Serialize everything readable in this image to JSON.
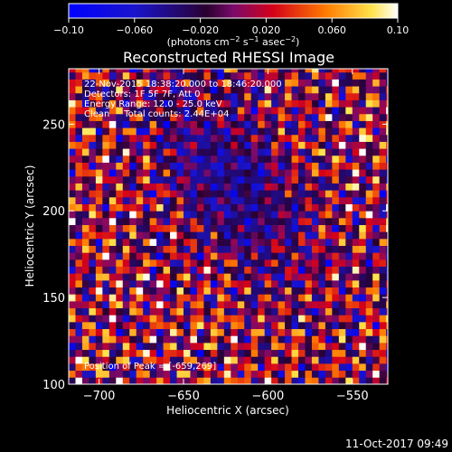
{
  "chart_data": {
    "type": "heatmap",
    "title": "Reconstructed RHESSI Image",
    "colorbar": {
      "ticks": [
        "−0.10",
        "−0.060",
        "−0.020",
        "0.020",
        "0.060",
        "0.10"
      ],
      "unit_prefix": "(photons cm",
      "unit_exp1": "−2",
      "unit_mid": " s",
      "unit_exp2": "−1",
      "unit_mid2": " asec",
      "unit_exp3": "−2",
      "unit_suffix": ")",
      "range": [
        -0.1,
        0.1
      ],
      "colormap": "blue-black-purple-red-orange-yellow-white"
    },
    "annotations": {
      "time": "22-Nov-2015 18:38:20.000 to 18:46:20.000",
      "detectors": "Detectors: 1F 5F 7F, Att 0",
      "energy": "Energy Range: 12.0 - 25.0 keV",
      "algorithm": "Clean     Total counts: 2.44E+04",
      "peak": "Position of Peak = [-659,269]"
    },
    "xlabel": "Heliocentric X (arcsec)",
    "ylabel": "Heliocentric Y (arcsec)",
    "xlim": [
      -718,
      -529
    ],
    "ylim": [
      100,
      282
    ],
    "xticks": [
      {
        "v": -700,
        "label": "−700"
      },
      {
        "v": -650,
        "label": "−650"
      },
      {
        "v": -600,
        "label": "−600"
      },
      {
        "v": -550,
        "label": "−550"
      }
    ],
    "yticks": [
      {
        "v": 100,
        "label": "100"
      },
      {
        "v": 150,
        "label": "150"
      },
      {
        "v": 200,
        "label": "200"
      },
      {
        "v": 250,
        "label": "250"
      }
    ],
    "pixel_arcsec": 4
  },
  "footer": {
    "date": "11-Oct-2017 09:49"
  }
}
